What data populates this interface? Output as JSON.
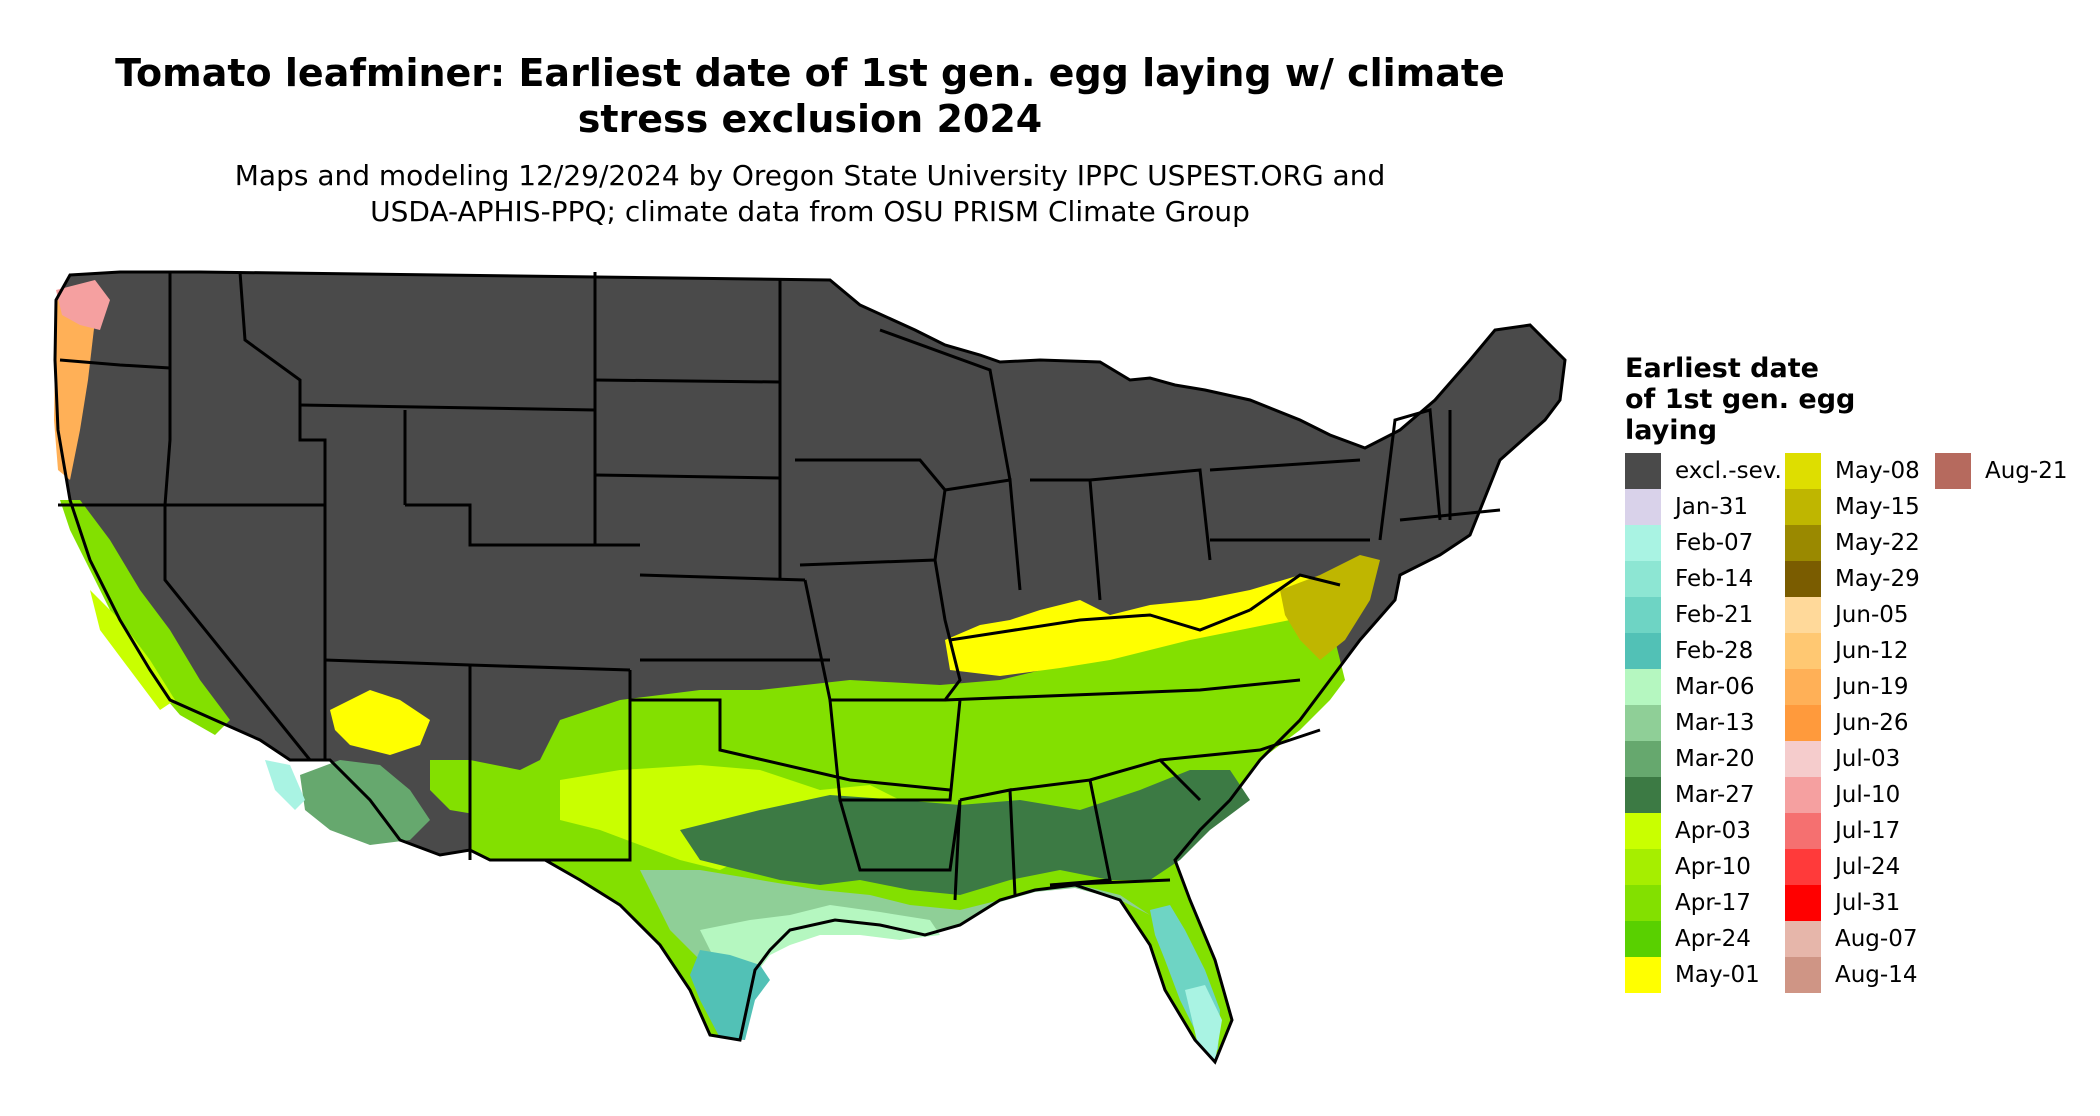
{
  "title": {
    "line1": "Tomato leafminer: Earliest date of 1st gen. egg laying w/ climate",
    "line2": "stress exclusion 2024"
  },
  "subtitle": {
    "line1": "Maps and modeling 12/29/2024 by Oregon State University IPPC USPEST.ORG and",
    "line2": "USDA-APHIS-PPQ; climate data from OSU PRISM Climate Group"
  },
  "legend": {
    "title_line1": "Earliest date",
    "title_line2": "of 1st gen. egg",
    "title_line3": "laying",
    "items": [
      {
        "label": "excl.-sev.",
        "color": "#4a4a4a"
      },
      {
        "label": "Jan-31",
        "color": "#d9d2ea"
      },
      {
        "label": "Feb-07",
        "color": "#a9f3e3"
      },
      {
        "label": "Feb-14",
        "color": "#8de6d3"
      },
      {
        "label": "Feb-21",
        "color": "#6ed4c4"
      },
      {
        "label": "Feb-28",
        "color": "#52c1b6"
      },
      {
        "label": "Mar-06",
        "color": "#b5f7c0"
      },
      {
        "label": "Mar-13",
        "color": "#8fcf97"
      },
      {
        "label": "Mar-20",
        "color": "#66a86e"
      },
      {
        "label": "Mar-27",
        "color": "#3c7a44"
      },
      {
        "label": "Apr-03",
        "color": "#c9ff00"
      },
      {
        "label": "Apr-10",
        "color": "#a6ee00"
      },
      {
        "label": "Apr-17",
        "color": "#83e000"
      },
      {
        "label": "Apr-24",
        "color": "#59d000"
      },
      {
        "label": "May-01",
        "color": "#ffff00"
      },
      {
        "label": "May-08",
        "color": "#dede00"
      },
      {
        "label": "May-15",
        "color": "#bfb600"
      },
      {
        "label": "May-22",
        "color": "#9a8900"
      },
      {
        "label": "May-29",
        "color": "#7a5c00"
      },
      {
        "label": "Jun-05",
        "color": "#ffd99a"
      },
      {
        "label": "Jun-12",
        "color": "#ffc872"
      },
      {
        "label": "Jun-19",
        "color": "#ffb057"
      },
      {
        "label": "Jun-26",
        "color": "#ff9a3c"
      },
      {
        "label": "Jul-03",
        "color": "#f5cccc"
      },
      {
        "label": "Jul-10",
        "color": "#f5a0a0"
      },
      {
        "label": "Jul-17",
        "color": "#f57070"
      },
      {
        "label": "Jul-24",
        "color": "#ff3a3a"
      },
      {
        "label": "Jul-31",
        "color": "#ff0000"
      },
      {
        "label": "Aug-07",
        "color": "#e6b6aa"
      },
      {
        "label": "Aug-14",
        "color": "#cf9585"
      },
      {
        "label": "Aug-21",
        "color": "#b66a5e"
      }
    ]
  }
}
